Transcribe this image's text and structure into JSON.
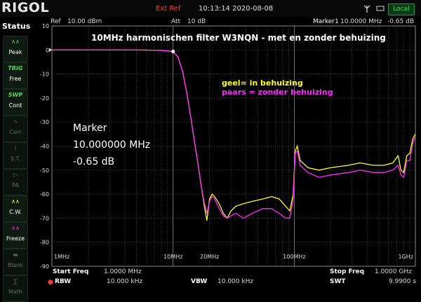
{
  "header": {
    "logo": "RIGOL",
    "ext_ref": "Ext Ref",
    "datetime": "10:13:14 2020-08-08",
    "local": "Local"
  },
  "info": {
    "ref_label": "Ref",
    "ref_value": "10.00 dBm",
    "att_label": "Att",
    "att_value": "10 dB",
    "marker_label": "Marker1",
    "marker_freq": "10.0000 MHz",
    "marker_level": "-0.65 dB"
  },
  "sidebar": {
    "title": "Status",
    "buttons": [
      {
        "top": "",
        "label": "Peak",
        "icon": "peak-icon",
        "state": "active"
      },
      {
        "top": "TRIG",
        "label": "Free",
        "icon": "",
        "state": "active"
      },
      {
        "top": "SWP",
        "label": "Cont",
        "icon": "",
        "state": "active"
      },
      {
        "top": "",
        "label": "Corr",
        "icon": "corr-icon",
        "state": "dim"
      },
      {
        "top": "",
        "label": "S.T.",
        "icon": "st-icon",
        "state": "dim"
      },
      {
        "top": "",
        "label": "PA",
        "icon": "pa-icon",
        "state": "dim"
      },
      {
        "top": "",
        "label": "C.W.",
        "icon": "cw-icon",
        "state": "active"
      },
      {
        "top": "",
        "label": "Freeze",
        "icon": "freeze-icon",
        "state": "active"
      },
      {
        "top": "",
        "label": "Blank",
        "icon": "blank-icon",
        "state": "dim"
      },
      {
        "top": "",
        "label": "Math",
        "icon": "math-icon",
        "state": "dim"
      }
    ]
  },
  "plot": {
    "title": "10MHz harmonischen filter W3NQN -  met en zonder behuizing",
    "legend": [
      {
        "key": "geel",
        "text": "= in behuizing",
        "color": "#ffff2a"
      },
      {
        "key": "paars",
        "text": "= zonder behuizing",
        "color": "#ff2aff"
      }
    ],
    "marker_text": [
      "Marker",
      "10.000000 MHz",
      "-0.65 dB"
    ],
    "y_ticks": [
      "10",
      "0",
      "-10",
      "-20",
      "-30",
      "-40",
      "-50",
      "-60",
      "-70",
      "-80",
      "-90"
    ],
    "x_ticks": [
      "1MHz",
      "10MHz",
      "20MHz",
      "100MHz",
      "1GHz"
    ]
  },
  "chart_data": {
    "type": "line",
    "x_scale": "log",
    "xlim_mhz": [
      1,
      1000
    ],
    "ylim": [
      -90,
      10
    ],
    "ylabel_unit": "dBm",
    "series": [
      {
        "name": "geel = in behuizing",
        "color": "#ffff2a",
        "points": [
          [
            1,
            0
          ],
          [
            5,
            0
          ],
          [
            7,
            -0.1
          ],
          [
            8,
            -0.2
          ],
          [
            9,
            -0.4
          ],
          [
            10,
            -0.65
          ],
          [
            11,
            -3
          ],
          [
            12,
            -9
          ],
          [
            13,
            -18
          ],
          [
            14,
            -28
          ],
          [
            15,
            -38
          ],
          [
            16,
            -47
          ],
          [
            17,
            -56
          ],
          [
            18,
            -64
          ],
          [
            19,
            -71
          ],
          [
            20,
            -62
          ],
          [
            21,
            -60
          ],
          [
            22,
            -61
          ],
          [
            24,
            -64
          ],
          [
            26,
            -68
          ],
          [
            28,
            -70
          ],
          [
            30,
            -67
          ],
          [
            33,
            -65
          ],
          [
            38,
            -64
          ],
          [
            45,
            -63
          ],
          [
            55,
            -62
          ],
          [
            65,
            -61
          ],
          [
            75,
            -62
          ],
          [
            85,
            -65
          ],
          [
            92,
            -67
          ],
          [
            98,
            -60
          ],
          [
            102,
            -42
          ],
          [
            106,
            -40
          ],
          [
            112,
            -46
          ],
          [
            130,
            -49
          ],
          [
            160,
            -50
          ],
          [
            200,
            -49
          ],
          [
            280,
            -48
          ],
          [
            350,
            -47
          ],
          [
            450,
            -48
          ],
          [
            550,
            -48
          ],
          [
            650,
            -47
          ],
          [
            720,
            -44
          ],
          [
            760,
            -50
          ],
          [
            800,
            -51
          ],
          [
            850,
            -44
          ],
          [
            900,
            -43
          ],
          [
            950,
            -37
          ],
          [
            1000,
            -35
          ]
        ]
      },
      {
        "name": "paars = zonder behuizing",
        "color": "#ff2aff",
        "points": [
          [
            1,
            0
          ],
          [
            5,
            0
          ],
          [
            7,
            -0.1
          ],
          [
            8,
            -0.2
          ],
          [
            9,
            -0.4
          ],
          [
            10,
            -0.65
          ],
          [
            11,
            -3
          ],
          [
            12,
            -9
          ],
          [
            13,
            -18
          ],
          [
            14,
            -28
          ],
          [
            15,
            -38
          ],
          [
            16,
            -47
          ],
          [
            17,
            -56
          ],
          [
            18,
            -63
          ],
          [
            19,
            -68
          ],
          [
            20,
            -63
          ],
          [
            21,
            -61
          ],
          [
            22,
            -62
          ],
          [
            24,
            -66
          ],
          [
            26,
            -69
          ],
          [
            28,
            -70
          ],
          [
            30,
            -69
          ],
          [
            33,
            -68
          ],
          [
            38,
            -70
          ],
          [
            45,
            -68
          ],
          [
            55,
            -66
          ],
          [
            65,
            -66
          ],
          [
            75,
            -68
          ],
          [
            85,
            -70
          ],
          [
            92,
            -70
          ],
          [
            98,
            -62
          ],
          [
            102,
            -43
          ],
          [
            106,
            -42
          ],
          [
            112,
            -48
          ],
          [
            130,
            -51
          ],
          [
            160,
            -53
          ],
          [
            200,
            -52
          ],
          [
            280,
            -51
          ],
          [
            350,
            -50
          ],
          [
            450,
            -51
          ],
          [
            550,
            -51
          ],
          [
            650,
            -50
          ],
          [
            720,
            -48
          ],
          [
            760,
            -52
          ],
          [
            800,
            -53
          ],
          [
            850,
            -46
          ],
          [
            900,
            -46
          ],
          [
            950,
            -39
          ],
          [
            1000,
            -36
          ]
        ]
      }
    ]
  },
  "footer": {
    "start_label": "Start Freq",
    "start_value": "1.0000 MHz",
    "stop_label": "Stop Freq",
    "stop_value": "1.0000 GHz",
    "rbw_label": "RBW",
    "rbw_value": "10.000 kHz",
    "vbw_label": "VBW",
    "vbw_value": "10.000 kHz",
    "swt_label": "SWT",
    "swt_value": "9.9900 s"
  }
}
